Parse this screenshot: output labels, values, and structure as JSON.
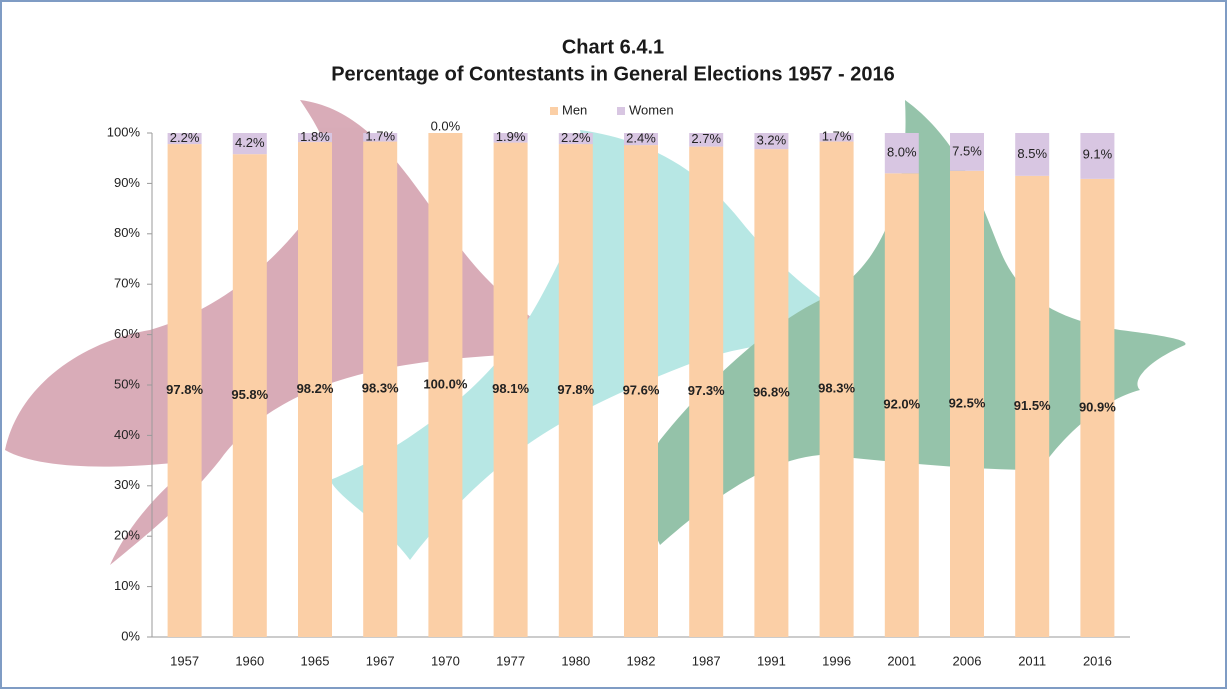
{
  "chart_data": {
    "type": "stacked-bar",
    "title": "Chart 6.4.1",
    "subtitle": "Percentage of Contestants in General Elections 1957 - 2016",
    "categories": [
      "1957",
      "1960",
      "1965",
      "1967",
      "1970",
      "1977",
      "1980",
      "1982",
      "1987",
      "1991",
      "1996",
      "2001",
      "2006",
      "2011",
      "2016"
    ],
    "series": [
      {
        "name": "Men",
        "color": "#fbcfa6",
        "values": [
          97.8,
          95.8,
          98.2,
          98.3,
          100,
          98.1,
          97.8,
          97.6,
          97.3,
          96.8,
          98.3,
          92.0,
          92.5,
          91.5,
          90.9
        ],
        "value_labels": [
          "97.8%",
          "95.8%",
          "98.2%",
          "98.3%",
          "100.0%",
          "98.1%",
          "97.8%",
          "97.6%",
          "97.3%",
          "96.8%",
          "98.3%",
          "92.0%",
          "92.5%",
          "91.5%",
          "90.9%"
        ]
      },
      {
        "name": "Women",
        "color": "#d8c6e2",
        "values": [
          2.2,
          4.2,
          1.8,
          1.7,
          0,
          1.9,
          2.2,
          2.4,
          2.7,
          3.2,
          1.7,
          8.0,
          7.5,
          8.5,
          9.1
        ],
        "value_labels": [
          "2.2%",
          "4.2%",
          "1.8%",
          "1.7%",
          "0.0%",
          "1.9%",
          "2.2%",
          "2.4%",
          "2.7%",
          "3.2%",
          "1.7%",
          "8.0%",
          "7.5%",
          "8.5%",
          "9.1%"
        ]
      }
    ],
    "ylim": [
      0,
      100
    ],
    "yticks": [
      {
        "value": 0,
        "label": "0%"
      },
      {
        "value": 10,
        "label": "10%"
      },
      {
        "value": 20,
        "label": "20%"
      },
      {
        "value": 30,
        "label": "30%"
      },
      {
        "value": 40,
        "label": "40%"
      },
      {
        "value": 50,
        "label": "50%"
      },
      {
        "value": 60,
        "label": "60%"
      },
      {
        "value": 70,
        "label": "70%"
      },
      {
        "value": 80,
        "label": "80%"
      },
      {
        "value": 90,
        "label": "90%"
      },
      {
        "value": 100,
        "label": "100%"
      }
    ],
    "grid": false,
    "legend": "top"
  }
}
